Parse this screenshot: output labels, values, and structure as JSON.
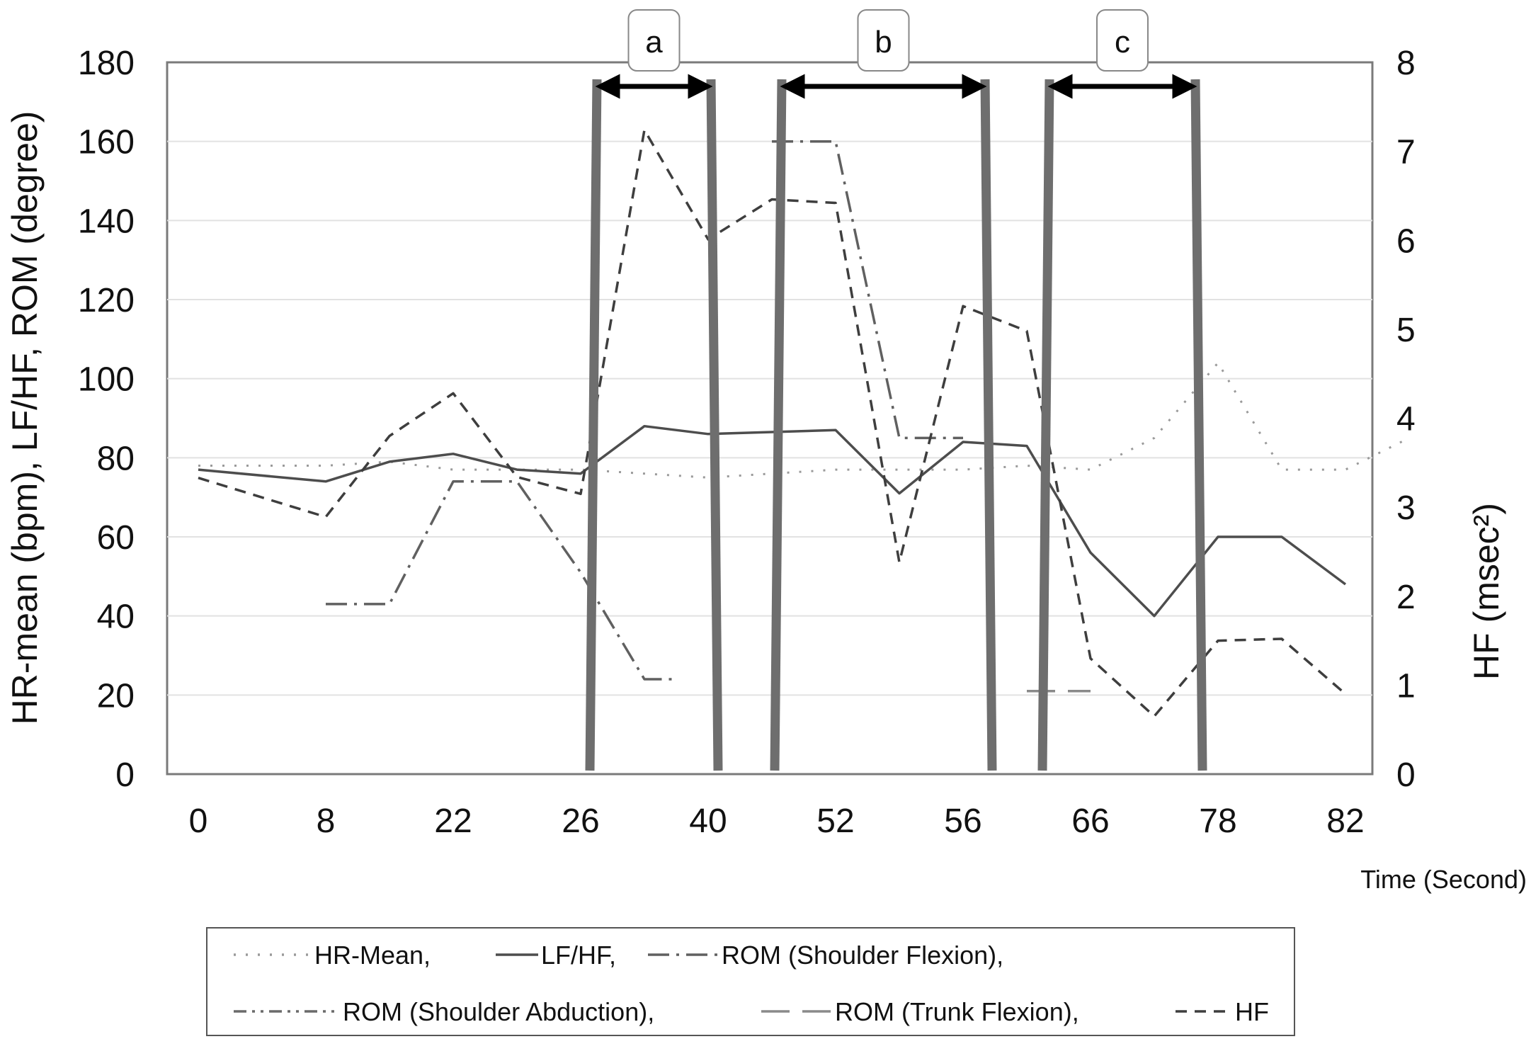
{
  "chart_data": {
    "type": "line",
    "xlabel": "Time (Second)",
    "ylabel_left": "HR-mean (bpm), LF/HF, ROM (degree)",
    "ylabel_right": "HF (msec²)",
    "x_ticks": [
      "0",
      "8",
      "22",
      "26",
      "40",
      "52",
      "56",
      "66",
      "78",
      "82"
    ],
    "y_left": {
      "min": 0,
      "max": 180,
      "ticks": [
        "0",
        "20",
        "40",
        "60",
        "80",
        "100",
        "120",
        "140",
        "160",
        "180"
      ]
    },
    "y_right": {
      "min": 0,
      "max": 8,
      "ticks": [
        "0",
        "1",
        "2",
        "3",
        "4",
        "5",
        "6",
        "7",
        "8"
      ]
    },
    "grid": true,
    "series": [
      {
        "key": "hr_mean",
        "legend": "HR-Mean,",
        "axis": "left",
        "style": "dotted",
        "color": "#9a9a9a",
        "points": [
          [
            0,
            78
          ],
          [
            1,
            78
          ],
          [
            1.5,
            79
          ],
          [
            2,
            77
          ],
          [
            3,
            77
          ],
          [
            4,
            75
          ],
          [
            5,
            77
          ],
          [
            6,
            77
          ],
          [
            6.5,
            78
          ],
          [
            7,
            77
          ],
          [
            7.5,
            85
          ],
          [
            8,
            104
          ],
          [
            8.5,
            77
          ],
          [
            9,
            77
          ],
          [
            9.5,
            85
          ]
        ]
      },
      {
        "key": "lf_hf",
        "legend": "LF/HF,",
        "axis": "left",
        "style": "solid",
        "color": "#4d4d4d",
        "points": [
          [
            0,
            77
          ],
          [
            1,
            74
          ],
          [
            1.5,
            79
          ],
          [
            2,
            81
          ],
          [
            2.5,
            77
          ],
          [
            3,
            76
          ],
          [
            3.5,
            88
          ],
          [
            4,
            86
          ],
          [
            5,
            87
          ],
          [
            5.5,
            71
          ],
          [
            6,
            84
          ],
          [
            6.5,
            83
          ],
          [
            7,
            56
          ],
          [
            7.5,
            40
          ],
          [
            8,
            60
          ],
          [
            8.5,
            60
          ],
          [
            9,
            48
          ]
        ]
      },
      {
        "key": "rom_shoulder_flexion",
        "legend": "ROM (Shoulder Flexion),",
        "axis": "left",
        "style": "dashdot",
        "color": "#606060",
        "segments": [
          [
            [
              1,
              43
            ],
            [
              1.5,
              43
            ],
            [
              2,
              74
            ],
            [
              2.5,
              74
            ],
            [
              3,
              51
            ],
            [
              3.5,
              24
            ],
            [
              3.75,
              24
            ]
          ],
          [
            [
              4.5,
              160
            ],
            [
              5,
              160
            ],
            [
              5.5,
              85
            ],
            [
              6,
              85
            ]
          ]
        ]
      },
      {
        "key": "rom_shoulder_abduction",
        "legend": "ROM (Shoulder Abduction),",
        "axis": "left",
        "style": "dashdotdot",
        "color": "#6a6a6a",
        "segments": []
      },
      {
        "key": "rom_trunk_flexion",
        "legend": "ROM (Trunk Flexion),",
        "axis": "left",
        "style": "longdash",
        "color": "#8a8a8a",
        "segments": [
          [
            [
              6.5,
              21
            ],
            [
              7,
              21
            ]
          ]
        ]
      },
      {
        "key": "hf",
        "legend": "HF",
        "axis": "right",
        "style": "dashed",
        "color": "#3e3e3e",
        "points": [
          [
            0,
            3.33
          ],
          [
            1,
            2.89
          ],
          [
            1.5,
            3.8
          ],
          [
            2,
            4.28
          ],
          [
            2.5,
            3.34
          ],
          [
            3,
            3.15
          ],
          [
            3.5,
            7.24
          ],
          [
            4,
            6.01
          ],
          [
            4.5,
            6.46
          ],
          [
            5,
            6.42
          ],
          [
            5.5,
            2.38
          ],
          [
            6,
            5.26
          ],
          [
            6.5,
            4.98
          ],
          [
            7,
            1.3
          ],
          [
            7.5,
            0.65
          ],
          [
            8,
            1.5
          ],
          [
            8.5,
            1.52
          ],
          [
            9,
            0.9
          ]
        ]
      }
    ],
    "intervals": [
      {
        "label": "a",
        "x_start": 3.1,
        "x_end": 4.05
      },
      {
        "label": "b",
        "x_start": 4.55,
        "x_end": 6.2
      },
      {
        "label": "c",
        "x_start": 6.65,
        "x_end": 7.85
      }
    ],
    "legend_position": "bottom"
  }
}
